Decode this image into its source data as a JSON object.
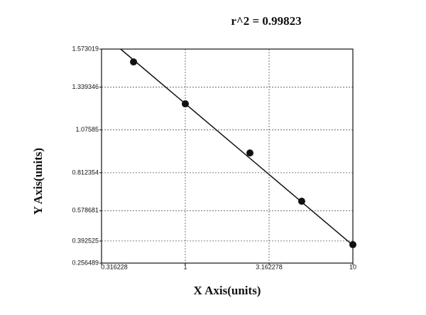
{
  "chart_data": {
    "type": "scatter",
    "title": "r^2 = 0.99823",
    "x_label": "X Axis(units)",
    "y_label": "Y Axis(units)",
    "x_scale": "log",
    "y_scale": "linear",
    "grid": true,
    "color": "#111111",
    "xlim": [
      0.316228,
      10
    ],
    "ylim": [
      0.256489,
      1.573019
    ],
    "xticks": [
      0.316228,
      1,
      3.162278,
      10
    ],
    "yticks": [
      0.256489,
      0.392525,
      0.578681,
      0.812354,
      1.07585,
      1.339346,
      1.573019
    ],
    "x": [
      0.491,
      1,
      2.43,
      4.95,
      10
    ],
    "values": [
      1.494,
      1.236,
      0.934,
      0.637,
      0.37
    ],
    "fit_line": {
      "x": [
        0.411,
        10
      ],
      "values": [
        1.573,
        0.366
      ]
    }
  }
}
